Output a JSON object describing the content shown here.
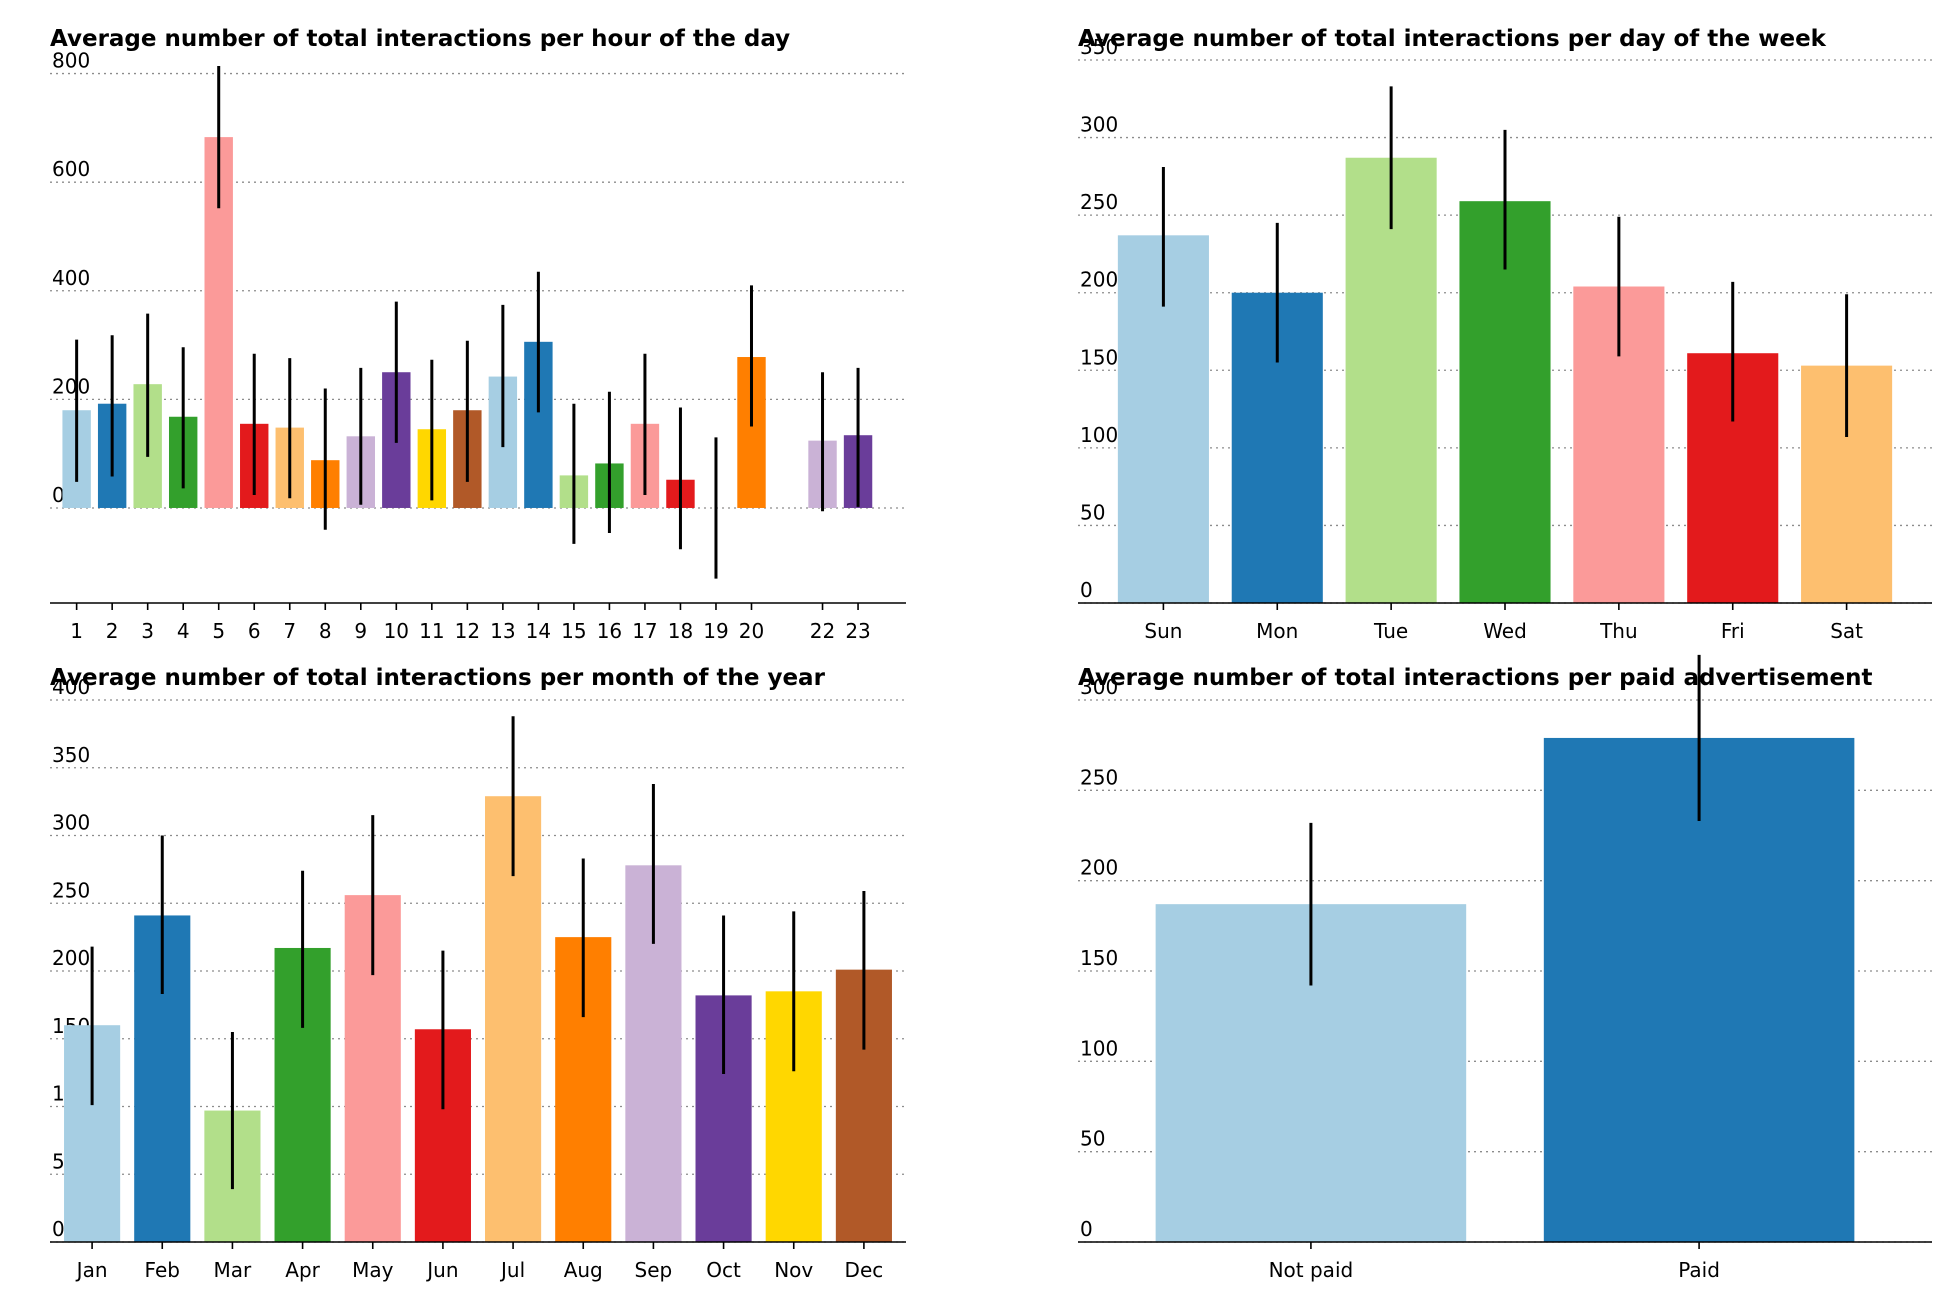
{
  "palette": [
    "#a6cee3",
    "#1f78b4",
    "#b2df8a",
    "#33a02c",
    "#fb9a99",
    "#e31a1c",
    "#fdbf6f",
    "#ff7f00",
    "#cab2d6",
    "#6a3d9a",
    "#ffd700",
    "#b15928"
  ],
  "chart_data": [
    {
      "id": "hour",
      "type": "bar",
      "title": "Average number of total interactions per hour of the day",
      "xlabel": "",
      "ylabel": "",
      "ylim": [
        -175,
        825
      ],
      "yticks": [
        0,
        200,
        400,
        600,
        800
      ],
      "grid": true,
      "categories": [
        "1",
        "2",
        "3",
        "4",
        "5",
        "6",
        "7",
        "8",
        "9",
        "10",
        "11",
        "12",
        "13",
        "14",
        "15",
        "16",
        "17",
        "18",
        "19",
        "20",
        "22",
        "23"
      ],
      "positions": [
        1,
        2,
        3,
        4,
        5,
        6,
        7,
        8,
        9,
        10,
        11,
        12,
        13,
        14,
        15,
        16,
        17,
        18,
        19,
        20,
        22,
        23
      ],
      "xrange": [
        0.25,
        24.35
      ],
      "values": [
        180,
        192,
        228,
        168,
        683,
        155,
        148,
        88,
        132,
        250,
        145,
        180,
        242,
        306,
        60,
        82,
        155,
        52,
        0,
        278,
        124,
        134
      ],
      "errors": [
        [
          48,
          310
        ],
        [
          58,
          318
        ],
        [
          94,
          358
        ],
        [
          36,
          296
        ],
        [
          552,
          814
        ],
        [
          24,
          284
        ],
        [
          18,
          276
        ],
        [
          -40,
          220
        ],
        [
          6,
          258
        ],
        [
          120,
          380
        ],
        [
          14,
          273
        ],
        [
          48,
          308
        ],
        [
          112,
          374
        ],
        [
          176,
          435
        ],
        [
          -66,
          192
        ],
        [
          -46,
          214
        ],
        [
          24,
          284
        ],
        [
          -76,
          185
        ],
        [
          -130,
          130
        ],
        [
          150,
          410
        ],
        [
          -6,
          250
        ],
        [
          2,
          258
        ]
      ]
    },
    {
      "id": "weekday",
      "type": "bar",
      "title": "Average number of total interactions per day of the week",
      "xlabel": "",
      "ylabel": "",
      "ylim": [
        0,
        350
      ],
      "yticks": [
        0,
        50,
        100,
        150,
        200,
        250,
        300,
        350
      ],
      "grid": true,
      "categories": [
        "Sun",
        "Mon",
        "Tue",
        "Wed",
        "Thu",
        "Fri",
        "Sat"
      ],
      "positions": [
        0,
        1,
        2,
        3,
        4,
        5,
        6
      ],
      "xrange": [
        -0.75,
        6.75
      ],
      "values": [
        237,
        200,
        287,
        259,
        204,
        161,
        153
      ],
      "errors": [
        [
          191,
          281
        ],
        [
          155,
          245
        ],
        [
          241,
          333
        ],
        [
          215,
          305
        ],
        [
          159,
          249
        ],
        [
          117,
          207
        ],
        [
          107,
          199
        ]
      ]
    },
    {
      "id": "month",
      "type": "bar",
      "title": "Average number of total interactions per month of the year",
      "xlabel": "",
      "ylabel": "",
      "ylim": [
        0,
        400
      ],
      "yticks": [
        0,
        50,
        100,
        150,
        200,
        250,
        300,
        350,
        400
      ],
      "grid": true,
      "categories": [
        "Jan",
        "Feb",
        "Mar",
        "Apr",
        "May",
        "Jun",
        "Jul",
        "Aug",
        "Sep",
        "Oct",
        "Nov",
        "Dec"
      ],
      "positions": [
        0,
        1,
        2,
        3,
        4,
        5,
        6,
        7,
        8,
        9,
        10,
        11
      ],
      "xrange": [
        -0.6,
        11.6
      ],
      "values": [
        160,
        241,
        97,
        217,
        256,
        157,
        329,
        225,
        278,
        182,
        185,
        201
      ],
      "errors": [
        [
          101,
          218
        ],
        [
          183,
          300
        ],
        [
          39,
          155
        ],
        [
          158,
          274
        ],
        [
          197,
          315
        ],
        [
          98,
          215
        ],
        [
          270,
          388
        ],
        [
          166,
          283
        ],
        [
          220,
          338
        ],
        [
          124,
          241
        ],
        [
          126,
          244
        ],
        [
          142,
          259
        ]
      ]
    },
    {
      "id": "paid",
      "type": "bar",
      "title": "Average number of total interactions per paid advertisement",
      "xlabel": "",
      "ylabel": "",
      "ylim": [
        0,
        300
      ],
      "yticks": [
        0,
        50,
        100,
        150,
        200,
        250,
        300
      ],
      "grid": true,
      "categories": [
        "Not paid",
        "Paid"
      ],
      "positions": [
        0,
        1
      ],
      "xrange": [
        -0.6,
        1.6
      ],
      "values": [
        187,
        279
      ],
      "errors": [
        [
          142,
          232
        ],
        [
          233,
          325
        ]
      ]
    }
  ]
}
